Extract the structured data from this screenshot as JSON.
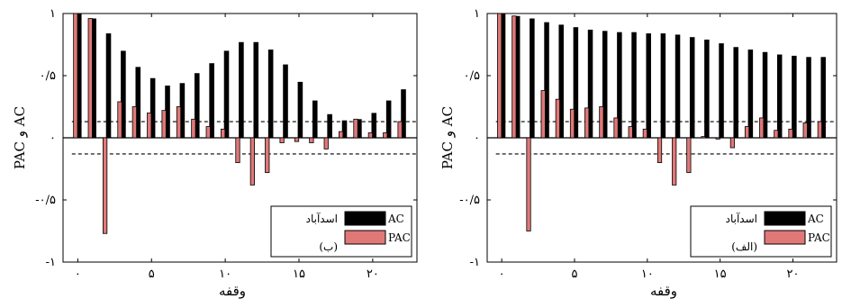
{
  "chart_data": [
    {
      "type": "bar",
      "panel_label": "(ب)",
      "station": "اسدآباد",
      "xlabel": "وقفه",
      "ylabel": "PAC و AC",
      "xlim": [
        -1,
        23
      ],
      "ylim": [
        -1,
        1
      ],
      "xticks": [
        0,
        5,
        10,
        15,
        20
      ],
      "xtick_labels": [
        "۰",
        "۵",
        "۱۰",
        "۱۵",
        "۲۰"
      ],
      "yticks": [
        -1,
        -0.5,
        0,
        0.5,
        1
      ],
      "ytick_labels": [
        "-۱",
        "-۰/۵",
        "۰",
        "۰/۵",
        "۱"
      ],
      "confidence_bounds": [
        0.13,
        -0.13
      ],
      "legend": [
        "AC",
        "PAC"
      ],
      "legend_position": "bottom-right",
      "colors": {
        "AC": "#000000",
        "PAC": "#e07878"
      },
      "series": [
        {
          "name": "AC",
          "x": [
            0,
            1,
            2,
            3,
            4,
            5,
            6,
            7,
            8,
            9,
            10,
            11,
            12,
            13,
            14,
            15,
            16,
            17,
            18,
            19,
            20,
            21,
            22
          ],
          "values": [
            1.0,
            0.96,
            0.84,
            0.7,
            0.57,
            0.48,
            0.42,
            0.44,
            0.52,
            0.6,
            0.7,
            0.77,
            0.77,
            0.71,
            0.59,
            0.45,
            0.3,
            0.19,
            0.14,
            0.15,
            0.2,
            0.3,
            0.39
          ]
        },
        {
          "name": "PAC",
          "x": [
            0,
            1,
            2,
            3,
            4,
            5,
            6,
            7,
            8,
            9,
            10,
            11,
            12,
            13,
            14,
            15,
            16,
            17,
            18,
            19,
            20,
            21,
            22
          ],
          "values": [
            1.0,
            0.96,
            -0.77,
            0.29,
            0.25,
            0.2,
            0.22,
            0.25,
            0.15,
            0.09,
            0.07,
            -0.2,
            -0.38,
            -0.28,
            -0.04,
            -0.03,
            -0.04,
            -0.09,
            0.05,
            0.15,
            0.04,
            0.04,
            0.13
          ]
        }
      ]
    },
    {
      "type": "bar",
      "panel_label": "(الف)",
      "station": "اسدآباد",
      "xlabel": "وقفه",
      "ylabel": "PAC و AC",
      "xlim": [
        -1,
        23
      ],
      "ylim": [
        -1,
        1
      ],
      "xticks": [
        0,
        5,
        10,
        15,
        20
      ],
      "xtick_labels": [
        "۰",
        "۵",
        "۱۰",
        "۱۵",
        "۲۰"
      ],
      "yticks": [
        -1,
        -0.5,
        0,
        0.5,
        1
      ],
      "ytick_labels": [
        "-۱",
        "-۰/۵",
        "۰",
        "۰/۵",
        "۱"
      ],
      "confidence_bounds": [
        0.13,
        -0.13
      ],
      "legend": [
        "AC",
        "PAC"
      ],
      "legend_position": "bottom-right",
      "colors": {
        "AC": "#000000",
        "PAC": "#e07878"
      },
      "series": [
        {
          "name": "AC",
          "x": [
            0,
            1,
            2,
            3,
            4,
            5,
            6,
            7,
            8,
            9,
            10,
            11,
            12,
            13,
            14,
            15,
            16,
            17,
            18,
            19,
            20,
            21,
            22
          ],
          "values": [
            1.0,
            0.98,
            0.96,
            0.93,
            0.91,
            0.89,
            0.87,
            0.86,
            0.85,
            0.85,
            0.84,
            0.84,
            0.83,
            0.81,
            0.79,
            0.76,
            0.73,
            0.71,
            0.69,
            0.67,
            0.66,
            0.65,
            0.65
          ]
        },
        {
          "name": "PAC",
          "x": [
            0,
            1,
            2,
            3,
            4,
            5,
            6,
            7,
            8,
            9,
            10,
            11,
            12,
            13,
            14,
            15,
            16,
            17,
            18,
            19,
            20,
            21,
            22
          ],
          "values": [
            1.0,
            0.98,
            -0.75,
            0.38,
            0.31,
            0.23,
            0.24,
            0.25,
            0.16,
            0.09,
            0.07,
            -0.2,
            -0.38,
            -0.28,
            0.01,
            -0.01,
            -0.08,
            0.09,
            0.16,
            0.06,
            0.07,
            0.12,
            0.13
          ]
        }
      ]
    }
  ]
}
